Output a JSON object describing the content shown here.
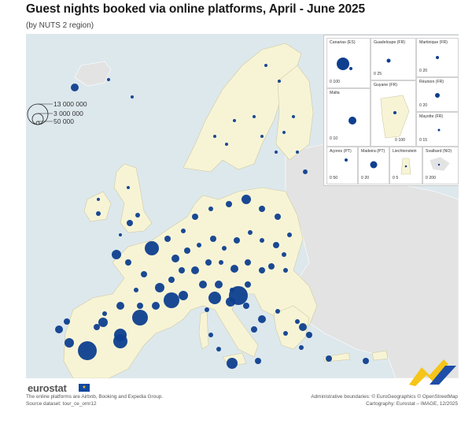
{
  "header": {
    "title": "Guest nights booked via online platforms, April - June 2025",
    "subtitle": "(by NUTS 2 region)"
  },
  "legend": {
    "values": [
      "13 000 000",
      "3 000 000",
      "50 000"
    ]
  },
  "colors": {
    "region_fill": "#f7f4d6",
    "non_eu_fill": "#e3e3e3",
    "sea": "#dde8ed",
    "bubble": "#0e3f8f"
  },
  "insets": [
    {
      "label": "Canarias (ES)",
      "scale": "0  100"
    },
    {
      "label": "Guadeloupe (FR)",
      "scale": "0  25"
    },
    {
      "label": "Martinique (FR)",
      "scale": "0  20"
    },
    {
      "label": "Réunion (FR)",
      "scale": "0  20"
    },
    {
      "label": "Malta",
      "scale": "0  10"
    },
    {
      "label": "Guyane (FR)",
      "scale": "0  100"
    },
    {
      "label": "Mayotte (FR)",
      "scale": "0  15"
    },
    {
      "label": "Açores (PT)",
      "scale": "0  50"
    },
    {
      "label": "Madeira (PT)",
      "scale": "0  20"
    },
    {
      "label": "Liechtenstein",
      "scale": "0  5"
    },
    {
      "label": "Svalbard (NO)",
      "scale": "0  200"
    }
  ],
  "footer": {
    "brand": "eurostat",
    "note": "The online platforms are Airbnb, Booking and Expedia Group.",
    "source": "Source dataset: tour_ce_omr12",
    "boundaries": "Administrative boundaries: © EuroGeographics © OpenStreetMap",
    "cartography": "Cartography: Eurostat – IMAGE, 12/2025"
  }
}
